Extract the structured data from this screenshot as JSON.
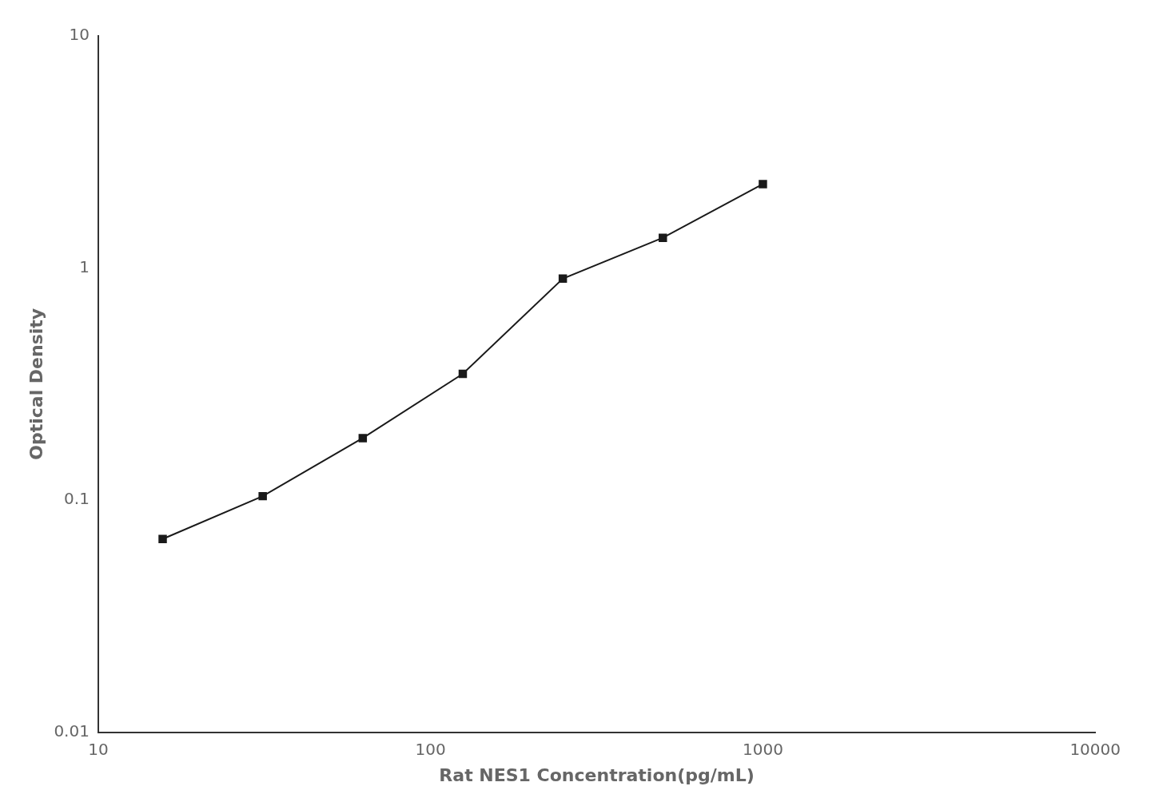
{
  "chart_data": {
    "type": "line",
    "xlabel": "Rat NES1 Concentration(pg/mL)",
    "ylabel": "Optical Density",
    "x": [
      15.625,
      31.25,
      62.5,
      125,
      250,
      500,
      1000
    ],
    "values": [
      0.068,
      0.104,
      0.185,
      0.35,
      0.9,
      1.35,
      2.3
    ],
    "color": "#1a1a1a",
    "marker": "square",
    "log": true,
    "xlim": [
      10,
      10000
    ],
    "ylim": [
      0.01,
      10
    ],
    "xticks": [
      10,
      100,
      1000,
      10000
    ],
    "yticks": [
      0.01,
      0.1,
      1,
      10
    ],
    "grid": false
  }
}
